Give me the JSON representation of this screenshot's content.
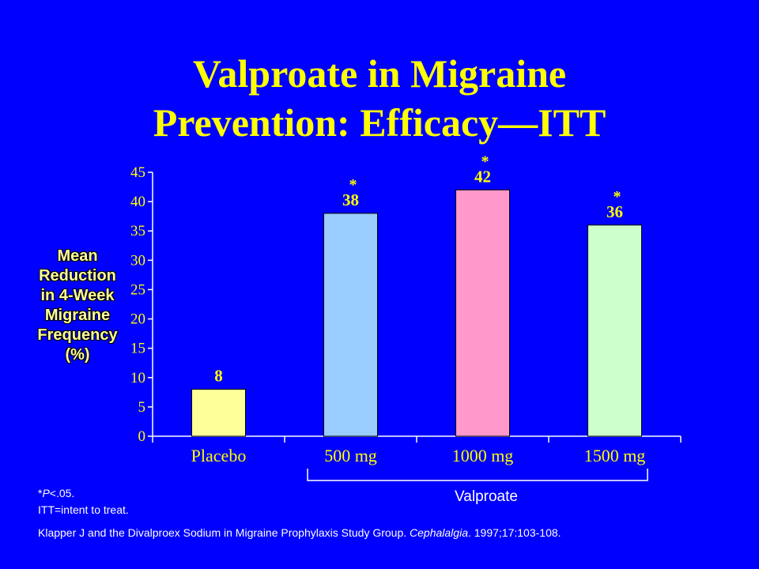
{
  "slide": {
    "title_line1": "Valproate in Migraine",
    "title_line2": "Prevention: Efficacy—ITT",
    "title_color": "#ffff00",
    "background_color": "#0000ff"
  },
  "y_axis_label_lines": [
    "Mean",
    "Reduction",
    "in 4-Week",
    "Migraine",
    "Frequency",
    "(%)"
  ],
  "group_label": "Valproate",
  "footnotes": {
    "sig_star": "*",
    "sig_p": "P",
    "sig_rest": "<.05.",
    "itt": "ITT=intent to treat.",
    "reference_pre": "Klapper J and the Divalproex Sodium in Migraine Prophylaxis Study Group. ",
    "reference_journal": "Cephalalgia",
    "reference_post": ". 1997;17:103-108."
  },
  "chart_data": {
    "type": "bar",
    "categories": [
      "Placebo",
      "500 mg",
      "1000 mg",
      "1500 mg"
    ],
    "values": [
      8,
      38,
      42,
      36
    ],
    "data_labels": [
      "8",
      "38",
      "42",
      "36"
    ],
    "significance_markers": [
      "",
      "*",
      "*",
      "*"
    ],
    "bar_colors": [
      "#ffff99",
      "#99ccff",
      "#ff99cc",
      "#ccffcc"
    ],
    "ylim": [
      0,
      45
    ],
    "yticks": [
      0,
      5,
      10,
      15,
      20,
      25,
      30,
      35,
      40,
      45
    ],
    "grid": false,
    "legend": "none",
    "label_color": "#ffff00",
    "axis_color": "#ffffff"
  }
}
